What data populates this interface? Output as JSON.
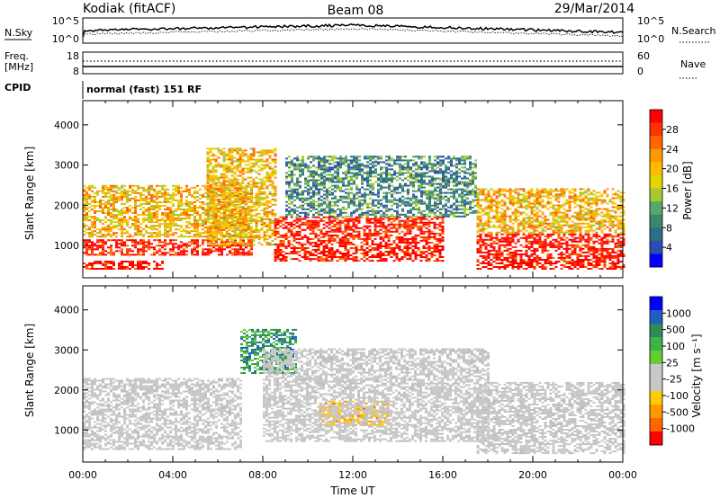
{
  "header": {
    "station": "Kodiak (fitACF)",
    "beam": "Beam 08",
    "date": "29/Mar/2014"
  },
  "strip": {
    "nsky_label": "N.Sky",
    "nsearch_label": "N.Search",
    "nsky_ticks": [
      "10^5",
      "10^0"
    ],
    "nsearch_ticks": [
      "10^5",
      "10^0"
    ],
    "freq_label": "Freq.",
    "freq_unit": "[MHz]",
    "freq_ticks": [
      "18",
      "8"
    ],
    "nave_label": "Nave",
    "nave_ticks": [
      "60",
      "0"
    ],
    "cpid_label": "CPID",
    "cpid_text": "normal (fast) 151 RF"
  },
  "chart_data": [
    {
      "type": "heatmap",
      "name": "power",
      "ylabel": "Slant Range [km]",
      "xlabel": "",
      "ylim": [
        200,
        4600
      ],
      "yticks": [
        1000,
        2000,
        3000,
        4000
      ],
      "xlim_hours": [
        0,
        24
      ],
      "xticks": [
        "00:00",
        "04:00",
        "08:00",
        "12:00",
        "16:00",
        "20:00",
        "00:00"
      ],
      "colorbar": {
        "label": "Power [dB]",
        "ticks": [
          "28",
          "24",
          "20",
          "16",
          "12",
          "8",
          "4"
        ],
        "colors": [
          "#ff0000",
          "#ff3300",
          "#ff6600",
          "#ff9900",
          "#ffbb00",
          "#e6d400",
          "#a8c830",
          "#5aa56a",
          "#3a8a6a",
          "#2e6e8a",
          "#2a4fb0",
          "#0000ff"
        ]
      },
      "features": [
        {
          "t0": 0.0,
          "t1": 3.5,
          "r0": 400,
          "r1": 600,
          "level": "high"
        },
        {
          "t0": 0.0,
          "t1": 7.5,
          "r0": 750,
          "r1": 1150,
          "level": "high"
        },
        {
          "t0": 0.0,
          "t1": 7.5,
          "r0": 1200,
          "r1": 2500,
          "level": "mid"
        },
        {
          "t0": 5.5,
          "t1": 8.5,
          "r0": 1000,
          "r1": 3400,
          "level": "mid"
        },
        {
          "t0": 8.5,
          "t1": 16.0,
          "r0": 600,
          "r1": 1700,
          "level": "high"
        },
        {
          "t0": 9.0,
          "t1": 17.5,
          "r0": 1700,
          "r1": 3200,
          "level": "low"
        },
        {
          "t0": 17.5,
          "t1": 24.0,
          "r0": 400,
          "r1": 1300,
          "level": "high"
        },
        {
          "t0": 17.5,
          "t1": 24.0,
          "r0": 1300,
          "r1": 2400,
          "level": "mid"
        }
      ]
    },
    {
      "type": "heatmap",
      "name": "velocity",
      "ylabel": "Slant Range [km]",
      "xlabel": "Time UT",
      "ylim": [
        200,
        4600
      ],
      "yticks": [
        1000,
        2000,
        3000,
        4000
      ],
      "xlim_hours": [
        0,
        24
      ],
      "xticks": [
        "00:00",
        "04:00",
        "08:00",
        "12:00",
        "16:00",
        "20:00",
        "00:00"
      ],
      "colorbar": {
        "label": "Velocity [m s⁻¹]",
        "ticks": [
          "1000",
          "500",
          "100",
          "25",
          "-25",
          "-100",
          "-500",
          "-1000"
        ],
        "colors": [
          "#0000ff",
          "#1f5fbf",
          "#2e8b57",
          "#3cb44b",
          "#66cc33",
          "#c8c8c8",
          "#c8c8c8",
          "#ffcc00",
          "#ff9900",
          "#ff6600",
          "#ff0000"
        ]
      },
      "features": [
        {
          "t0": 0.0,
          "t1": 7.0,
          "r0": 500,
          "r1": 2300,
          "level": "ground"
        },
        {
          "t0": 7.0,
          "t1": 9.5,
          "r0": 2400,
          "r1": 3500,
          "level": "positive"
        },
        {
          "t0": 10.5,
          "t1": 13.5,
          "r0": 1100,
          "r1": 1700,
          "level": "negative"
        },
        {
          "t0": 8.0,
          "t1": 18.0,
          "r0": 700,
          "r1": 3000,
          "level": "ground"
        },
        {
          "t0": 17.5,
          "t1": 24.0,
          "r0": 400,
          "r1": 2200,
          "level": "ground"
        }
      ]
    }
  ]
}
